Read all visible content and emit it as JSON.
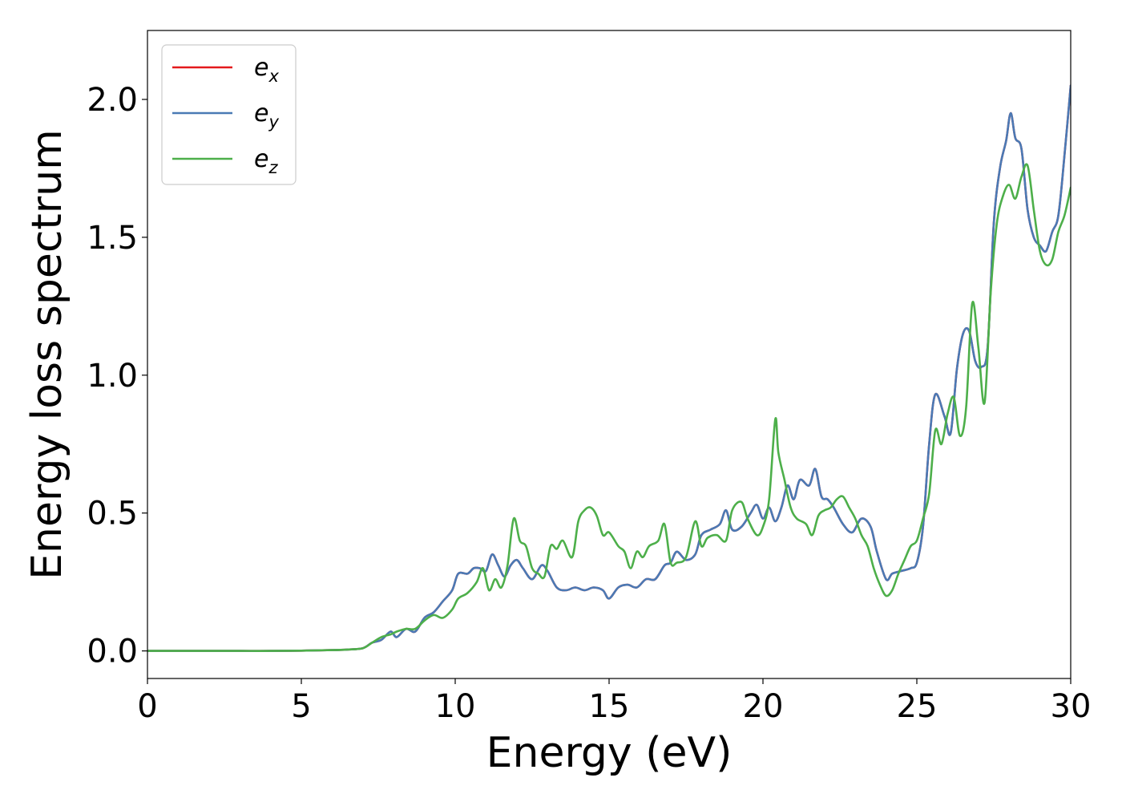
{
  "chart_data": {
    "type": "line",
    "title": "",
    "xlabel": "Energy (eV)",
    "ylabel": "Energy loss spectrum",
    "xlim": [
      0,
      30
    ],
    "ylim": [
      -0.1,
      2.25
    ],
    "x_ticks": [
      0,
      5,
      10,
      15,
      20,
      25,
      30
    ],
    "x_tick_labels": [
      "0",
      "5",
      "10",
      "15",
      "20",
      "25",
      "30"
    ],
    "y_ticks": [
      0.0,
      0.5,
      1.0,
      1.5,
      2.0
    ],
    "y_tick_labels": [
      "0.0",
      "0.5",
      "1.0",
      "1.5",
      "2.0"
    ],
    "grid": false,
    "legend_position": "top-left",
    "series": [
      {
        "name": "e_x",
        "legend_base": "e",
        "legend_sub": "x",
        "color": "#e41a1c",
        "x": [
          0,
          1,
          2,
          3,
          4,
          5,
          6,
          6.5,
          7,
          7.3,
          7.6,
          7.9,
          8.1,
          8.4,
          8.7,
          9.0,
          9.3,
          9.6,
          9.9,
          10.1,
          10.4,
          10.6,
          10.8,
          11.0,
          11.2,
          11.4,
          11.6,
          11.8,
          12.0,
          12.2,
          12.5,
          12.8,
          13.0,
          13.3,
          13.6,
          13.9,
          14.2,
          14.5,
          14.8,
          15.0,
          15.3,
          15.6,
          15.9,
          16.2,
          16.5,
          16.8,
          17.0,
          17.2,
          17.5,
          17.8,
          18.0,
          18.3,
          18.6,
          18.8,
          19.0,
          19.3,
          19.6,
          19.8,
          20.0,
          20.2,
          20.4,
          20.6,
          20.8,
          21.0,
          21.2,
          21.5,
          21.7,
          21.9,
          22.1,
          22.3,
          22.6,
          22.9,
          23.2,
          23.5,
          23.7,
          24.0,
          24.2,
          24.5,
          24.8,
          25.0,
          25.2,
          25.4,
          25.6,
          25.9,
          26.1,
          26.3,
          26.5,
          26.7,
          26.9,
          27.1,
          27.3,
          27.5,
          27.7,
          27.9,
          28.05,
          28.2,
          28.4,
          28.6,
          28.8,
          29.0,
          29.2,
          29.4,
          29.6,
          29.8,
          30.0
        ],
        "y": [
          0,
          0,
          0,
          0,
          0,
          0.001,
          0.003,
          0.005,
          0.01,
          0.03,
          0.04,
          0.07,
          0.05,
          0.08,
          0.07,
          0.12,
          0.14,
          0.18,
          0.22,
          0.28,
          0.28,
          0.3,
          0.3,
          0.29,
          0.35,
          0.31,
          0.27,
          0.31,
          0.33,
          0.3,
          0.26,
          0.31,
          0.29,
          0.23,
          0.22,
          0.23,
          0.22,
          0.23,
          0.22,
          0.19,
          0.23,
          0.24,
          0.23,
          0.26,
          0.26,
          0.31,
          0.32,
          0.36,
          0.33,
          0.35,
          0.42,
          0.44,
          0.46,
          0.51,
          0.44,
          0.45,
          0.5,
          0.53,
          0.48,
          0.52,
          0.47,
          0.52,
          0.6,
          0.55,
          0.62,
          0.6,
          0.66,
          0.56,
          0.55,
          0.52,
          0.46,
          0.43,
          0.48,
          0.45,
          0.36,
          0.26,
          0.28,
          0.29,
          0.3,
          0.32,
          0.45,
          0.75,
          0.93,
          0.85,
          0.79,
          1.02,
          1.15,
          1.16,
          1.05,
          1.03,
          1.1,
          1.55,
          1.75,
          1.85,
          1.95,
          1.86,
          1.82,
          1.6,
          1.5,
          1.47,
          1.45,
          1.52,
          1.58,
          1.8,
          2.05
        ]
      },
      {
        "name": "e_y",
        "legend_base": "e",
        "legend_sub": "y",
        "color": "#4a7ab5",
        "x": [
          0,
          1,
          2,
          3,
          4,
          5,
          6,
          6.5,
          7,
          7.3,
          7.6,
          7.9,
          8.1,
          8.4,
          8.7,
          9.0,
          9.3,
          9.6,
          9.9,
          10.1,
          10.4,
          10.6,
          10.8,
          11.0,
          11.2,
          11.4,
          11.6,
          11.8,
          12.0,
          12.2,
          12.5,
          12.8,
          13.0,
          13.3,
          13.6,
          13.9,
          14.2,
          14.5,
          14.8,
          15.0,
          15.3,
          15.6,
          15.9,
          16.2,
          16.5,
          16.8,
          17.0,
          17.2,
          17.5,
          17.8,
          18.0,
          18.3,
          18.6,
          18.8,
          19.0,
          19.3,
          19.6,
          19.8,
          20.0,
          20.2,
          20.4,
          20.6,
          20.8,
          21.0,
          21.2,
          21.5,
          21.7,
          21.9,
          22.1,
          22.3,
          22.6,
          22.9,
          23.2,
          23.5,
          23.7,
          24.0,
          24.2,
          24.5,
          24.8,
          25.0,
          25.2,
          25.4,
          25.6,
          25.9,
          26.1,
          26.3,
          26.5,
          26.7,
          26.9,
          27.1,
          27.3,
          27.5,
          27.7,
          27.9,
          28.05,
          28.2,
          28.4,
          28.6,
          28.8,
          29.0,
          29.2,
          29.4,
          29.6,
          29.8,
          30.0
        ],
        "y": [
          0,
          0,
          0,
          0,
          0,
          0.001,
          0.003,
          0.005,
          0.01,
          0.03,
          0.04,
          0.07,
          0.05,
          0.08,
          0.07,
          0.12,
          0.14,
          0.18,
          0.22,
          0.28,
          0.28,
          0.3,
          0.3,
          0.29,
          0.35,
          0.31,
          0.27,
          0.31,
          0.33,
          0.3,
          0.26,
          0.31,
          0.29,
          0.23,
          0.22,
          0.23,
          0.22,
          0.23,
          0.22,
          0.19,
          0.23,
          0.24,
          0.23,
          0.26,
          0.26,
          0.31,
          0.32,
          0.36,
          0.33,
          0.35,
          0.42,
          0.44,
          0.46,
          0.51,
          0.44,
          0.45,
          0.5,
          0.53,
          0.48,
          0.52,
          0.47,
          0.52,
          0.6,
          0.55,
          0.62,
          0.6,
          0.66,
          0.56,
          0.55,
          0.52,
          0.46,
          0.43,
          0.48,
          0.45,
          0.36,
          0.26,
          0.28,
          0.29,
          0.3,
          0.32,
          0.45,
          0.75,
          0.93,
          0.85,
          0.79,
          1.02,
          1.15,
          1.16,
          1.05,
          1.03,
          1.1,
          1.55,
          1.75,
          1.85,
          1.95,
          1.86,
          1.82,
          1.6,
          1.5,
          1.47,
          1.45,
          1.52,
          1.58,
          1.8,
          2.05
        ]
      },
      {
        "name": "e_z",
        "legend_base": "e",
        "legend_sub": "z",
        "color": "#4daf4a",
        "x": [
          0,
          1,
          2,
          3,
          4,
          5,
          6,
          6.5,
          7,
          7.3,
          7.6,
          7.9,
          8.1,
          8.4,
          8.7,
          9.0,
          9.3,
          9.6,
          9.9,
          10.1,
          10.4,
          10.7,
          10.9,
          11.1,
          11.3,
          11.5,
          11.7,
          11.9,
          12.1,
          12.3,
          12.5,
          12.7,
          12.9,
          13.1,
          13.3,
          13.5,
          13.8,
          14.0,
          14.2,
          14.4,
          14.6,
          14.8,
          15.0,
          15.3,
          15.5,
          15.7,
          15.9,
          16.1,
          16.3,
          16.6,
          16.8,
          17.0,
          17.2,
          17.5,
          17.8,
          18.0,
          18.2,
          18.5,
          18.8,
          19.0,
          19.3,
          19.5,
          19.8,
          20.0,
          20.2,
          20.4,
          20.5,
          20.7,
          20.9,
          21.1,
          21.4,
          21.6,
          21.8,
          22.0,
          22.2,
          22.4,
          22.6,
          22.8,
          23.0,
          23.2,
          23.4,
          23.6,
          23.8,
          24.0,
          24.2,
          24.4,
          24.6,
          24.8,
          25.0,
          25.2,
          25.4,
          25.6,
          25.8,
          26.0,
          26.2,
          26.4,
          26.6,
          26.8,
          27.0,
          27.2,
          27.4,
          27.6,
          27.8,
          28.0,
          28.2,
          28.4,
          28.6,
          28.8,
          29.0,
          29.2,
          29.4,
          29.6,
          29.8,
          30.0
        ],
        "y": [
          0,
          0,
          0,
          0,
          0,
          0.001,
          0.003,
          0.005,
          0.01,
          0.03,
          0.05,
          0.06,
          0.07,
          0.08,
          0.08,
          0.11,
          0.13,
          0.12,
          0.15,
          0.19,
          0.21,
          0.25,
          0.3,
          0.22,
          0.26,
          0.23,
          0.31,
          0.48,
          0.4,
          0.38,
          0.3,
          0.28,
          0.27,
          0.38,
          0.37,
          0.4,
          0.34,
          0.47,
          0.51,
          0.52,
          0.49,
          0.42,
          0.43,
          0.38,
          0.36,
          0.3,
          0.36,
          0.34,
          0.38,
          0.4,
          0.46,
          0.32,
          0.32,
          0.34,
          0.47,
          0.38,
          0.41,
          0.42,
          0.4,
          0.51,
          0.54,
          0.48,
          0.42,
          0.45,
          0.55,
          0.84,
          0.72,
          0.62,
          0.52,
          0.48,
          0.46,
          0.42,
          0.49,
          0.51,
          0.52,
          0.55,
          0.56,
          0.52,
          0.48,
          0.42,
          0.38,
          0.3,
          0.24,
          0.2,
          0.22,
          0.28,
          0.33,
          0.38,
          0.4,
          0.48,
          0.57,
          0.8,
          0.75,
          0.86,
          0.92,
          0.78,
          0.88,
          1.26,
          1.1,
          0.9,
          1.3,
          1.55,
          1.65,
          1.69,
          1.64,
          1.72,
          1.76,
          1.6,
          1.45,
          1.4,
          1.42,
          1.52,
          1.58,
          1.68
        ]
      }
    ]
  }
}
